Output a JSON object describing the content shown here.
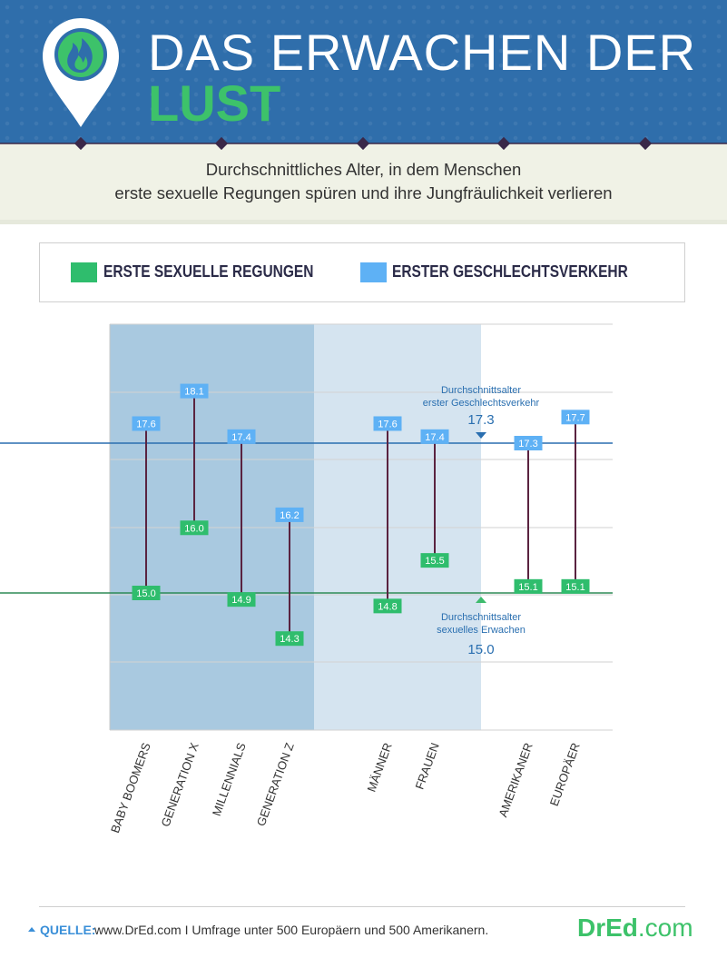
{
  "header": {
    "title_line1": "DAS ERWACHEN DER",
    "title_line2": "LUST",
    "icon": "flame-pin-icon"
  },
  "subtitle": {
    "line1": "Durchschnittliches Alter, in dem Menschen",
    "line2": "erste sexuelle Regungen spüren und ihre Jungfräulichkeit verlieren"
  },
  "legend": {
    "items": [
      {
        "label": "ERSTE SEXUELLE REGUNGEN",
        "color": "#2fbd6d"
      },
      {
        "label": "ERSTER GESCHLECHTSVERKEHR",
        "color": "#5eb1f5"
      }
    ]
  },
  "chart_data": {
    "type": "range",
    "categories": [
      "BABY BOOMERS",
      "GENERATION X",
      "MILLENNIALS",
      "GENERATION Z",
      "MÄNNER",
      "FRAUEN",
      "AMERIKANER",
      "EUROPÄER"
    ],
    "series": [
      {
        "name": "ERSTE SEXUELLE REGUNGEN",
        "color": "#2fbd6d",
        "values": [
          15.0,
          16.0,
          14.9,
          14.3,
          14.8,
          15.5,
          15.1,
          15.1
        ]
      },
      {
        "name": "ERSTER GESCHLECHTSVERKEHR",
        "color": "#5eb1f5",
        "values": [
          17.6,
          18.1,
          17.4,
          16.2,
          17.6,
          17.4,
          17.3,
          17.7
        ]
      }
    ],
    "reference_lines": [
      {
        "label_line1": "Durchschnittsalter",
        "label_line2": "erster Geschlechtsverkehr",
        "value": 17.3,
        "value_label": "17.3",
        "color": "#2a6fb0"
      },
      {
        "label_line1": "Durchschnittsalter",
        "label_line2": "sexuelles Erwachen",
        "value": 15.0,
        "value_label": "15.0",
        "color": "#2e8b57"
      }
    ],
    "groups": [
      {
        "categories": [
          "BABY BOOMERS",
          "GENERATION X",
          "MILLENNIALS",
          "GENERATION Z"
        ],
        "background": "#a9c9e0"
      },
      {
        "categories": [
          "MÄNNER",
          "FRAUEN"
        ],
        "background": "#d5e4f0"
      },
      {
        "categories": [
          "AMERIKANER",
          "EUROPÄER"
        ],
        "background": "#ffffff"
      }
    ],
    "grid": true,
    "legend_position": "top",
    "ylim": [
      12.5,
      18.5
    ]
  },
  "footer": {
    "source_label": "QUELLE:",
    "source_text": "www.DrEd.com I Umfrage unter 500 Europäern und 500 Amerikanern.",
    "brand_main": "DrEd",
    "brand_tld": ".com"
  }
}
